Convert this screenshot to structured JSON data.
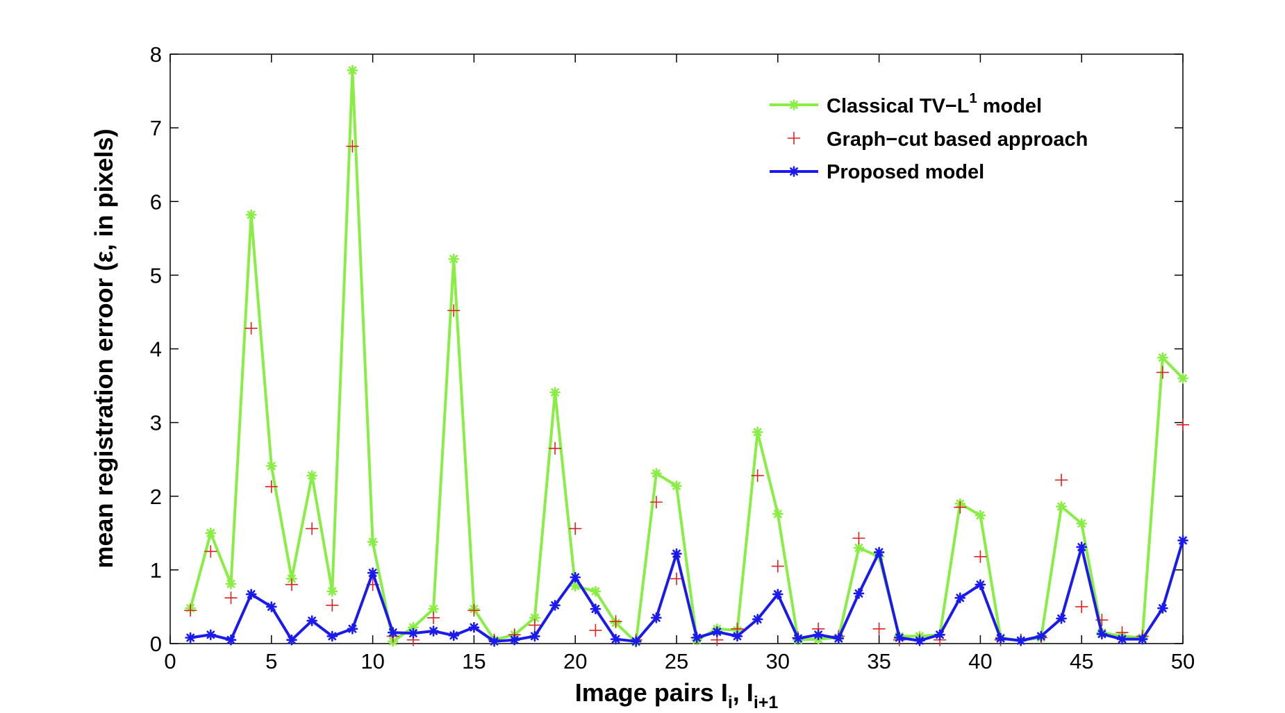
{
  "chart_data": {
    "type": "line",
    "title": "",
    "xlabel": {
      "main": "Image pairs I",
      "sub1": "i",
      "sep": ", I",
      "sub2": "i+1"
    },
    "ylabel": "mean registration erroor (ε, in pixels)",
    "xlim": [
      0,
      50
    ],
    "ylim": [
      0,
      8
    ],
    "xticks": [
      0,
      5,
      10,
      15,
      20,
      25,
      30,
      35,
      40,
      45,
      50
    ],
    "yticks": [
      0,
      1,
      2,
      3,
      4,
      5,
      6,
      7,
      8
    ],
    "grid": false,
    "legend_position": "top-right",
    "x": [
      1,
      2,
      3,
      4,
      5,
      6,
      7,
      8,
      9,
      10,
      11,
      12,
      13,
      14,
      15,
      16,
      17,
      18,
      19,
      20,
      21,
      22,
      23,
      24,
      25,
      26,
      27,
      28,
      29,
      30,
      31,
      32,
      33,
      34,
      35,
      36,
      37,
      38,
      39,
      40,
      41,
      42,
      43,
      44,
      45,
      46,
      47,
      48,
      49,
      50
    ],
    "series": [
      {
        "name": "Classical TV−L",
        "name_sup": "1",
        "name_suffix": " model",
        "color": "#88ee44",
        "style": "line-marker",
        "values": [
          0.48,
          1.5,
          0.81,
          5.82,
          2.41,
          0.88,
          2.28,
          0.71,
          7.78,
          1.38,
          0.03,
          0.22,
          0.47,
          5.22,
          0.47,
          0.05,
          0.12,
          0.35,
          3.41,
          0.78,
          0.71,
          0.28,
          0.02,
          2.31,
          2.14,
          0.05,
          0.2,
          0.18,
          2.87,
          1.76,
          0.05,
          0.06,
          0.08,
          1.3,
          1.18,
          0.1,
          0.1,
          0.12,
          1.9,
          1.74,
          0.08,
          0.04,
          0.08,
          1.86,
          1.63,
          0.15,
          0.1,
          0.08,
          3.88,
          3.6
        ]
      },
      {
        "name": "Graph−cut based approach",
        "color": "#dd2222",
        "style": "marker",
        "values": [
          0.45,
          1.25,
          0.62,
          4.28,
          2.13,
          0.8,
          1.56,
          0.52,
          6.75,
          0.8,
          0.1,
          0.05,
          0.35,
          4.52,
          0.45,
          0.05,
          0.12,
          0.25,
          2.65,
          1.56,
          0.18,
          0.3,
          0.05,
          1.92,
          0.88,
          0.08,
          0.05,
          0.2,
          2.28,
          1.05,
          0.08,
          0.2,
          0.1,
          1.43,
          0.2,
          0.05,
          0.05,
          0.05,
          1.85,
          1.18,
          0.05,
          0.05,
          0.08,
          2.22,
          0.5,
          0.32,
          0.15,
          0.1,
          3.68,
          2.97
        ]
      },
      {
        "name": "Proposed model",
        "color": "#1a1aee",
        "style": "line-marker",
        "values": [
          0.08,
          0.12,
          0.05,
          0.67,
          0.5,
          0.05,
          0.31,
          0.1,
          0.2,
          0.96,
          0.15,
          0.14,
          0.17,
          0.11,
          0.22,
          0.03,
          0.05,
          0.1,
          0.52,
          0.9,
          0.47,
          0.06,
          0.03,
          0.35,
          1.22,
          0.08,
          0.16,
          0.1,
          0.33,
          0.67,
          0.07,
          0.12,
          0.07,
          0.68,
          1.24,
          0.08,
          0.04,
          0.12,
          0.62,
          0.8,
          0.07,
          0.04,
          0.1,
          0.34,
          1.31,
          0.13,
          0.06,
          0.06,
          0.48,
          1.4
        ]
      }
    ]
  }
}
